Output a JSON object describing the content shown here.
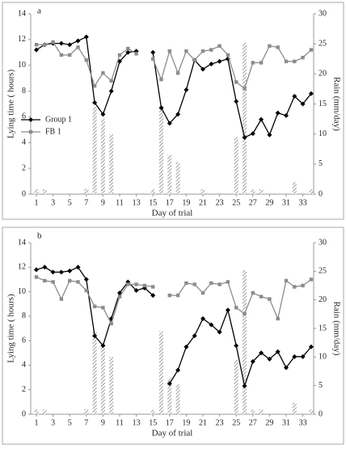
{
  "chart_data": [
    {
      "type": "line",
      "title": "a",
      "x_label": "Day of trial",
      "y_label": "Lying time ( hours)",
      "y2_label": "Rain (mm/day)",
      "x": [
        1,
        2,
        3,
        4,
        5,
        6,
        7,
        8,
        9,
        10,
        11,
        12,
        13,
        14,
        15,
        16,
        17,
        18,
        19,
        20,
        21,
        22,
        23,
        24,
        25,
        26,
        27,
        28,
        29,
        30,
        31,
        32,
        33,
        34
      ],
      "xticks": [
        1,
        3,
        5,
        7,
        9,
        11,
        13,
        15,
        17,
        19,
        21,
        23,
        25,
        27,
        29,
        31,
        33
      ],
      "ylim": [
        0,
        14
      ],
      "yticks": [
        0,
        2,
        4,
        6,
        8,
        10,
        12,
        14
      ],
      "y2lim": [
        0,
        30
      ],
      "y2ticks": [
        0,
        5,
        10,
        15,
        20,
        25,
        30
      ],
      "legend": "left",
      "series": [
        {
          "name": "Group 1",
          "color": "#000000",
          "values": [
            11.2,
            11.6,
            11.7,
            11.7,
            11.6,
            11.9,
            12.2,
            7.1,
            6.2,
            8.0,
            10.3,
            11.0,
            11.1,
            null,
            11.0,
            6.7,
            5.5,
            6.2,
            8.1,
            10.4,
            9.7,
            10.1,
            10.3,
            10.5,
            7.2,
            4.4,
            4.7,
            5.8,
            4.6,
            6.3,
            6.1,
            7.6,
            7.0,
            7.8
          ]
        },
        {
          "name": "FB 1",
          "color": "#8c8c8c",
          "values": [
            11.6,
            11.6,
            11.8,
            10.8,
            10.8,
            11.4,
            10.4,
            8.4,
            9.4,
            8.8,
            10.8,
            11.3,
            10.9,
            null,
            10.5,
            8.9,
            11.1,
            9.4,
            11.1,
            10.4,
            11.1,
            11.2,
            11.5,
            10.8,
            8.7,
            8.2,
            10.2,
            10.2,
            11.5,
            11.4,
            10.3,
            10.3,
            10.6,
            11.2
          ]
        }
      ],
      "bars": {
        "axis": "y2",
        "color": "#777777",
        "values": [
          0.8,
          0.8,
          0,
          0,
          0,
          0,
          0.9,
          14.5,
          12.5,
          10,
          0,
          0,
          0,
          0,
          0.8,
          14.5,
          6.5,
          5.3,
          0,
          0,
          0.8,
          0,
          0,
          0,
          9.5,
          25.2,
          0.8,
          0.8,
          0,
          0,
          0,
          2,
          0,
          0.8
        ]
      }
    },
    {
      "type": "line",
      "title": "b",
      "x_label": "Day of trial",
      "y_label": "Lying time ( hours)",
      "y2_label": "Rain (mm/day)",
      "x": [
        1,
        2,
        3,
        4,
        5,
        6,
        7,
        8,
        9,
        10,
        11,
        12,
        13,
        14,
        15,
        16,
        17,
        18,
        19,
        20,
        21,
        22,
        23,
        24,
        25,
        26,
        27,
        28,
        29,
        30,
        31,
        32,
        33,
        34
      ],
      "xticks": [
        1,
        3,
        5,
        7,
        9,
        11,
        13,
        15,
        17,
        19,
        21,
        23,
        25,
        27,
        29,
        31,
        33
      ],
      "ylim": [
        0,
        14
      ],
      "yticks": [
        0,
        2,
        4,
        6,
        8,
        10,
        12,
        14
      ],
      "y2lim": [
        0,
        30
      ],
      "y2ticks": [
        0,
        5,
        10,
        15,
        20,
        25,
        30
      ],
      "series": [
        {
          "color": "#000000",
          "values": [
            11.8,
            12.0,
            11.6,
            11.6,
            11.7,
            12.0,
            11.0,
            6.4,
            5.6,
            7.8,
            9.9,
            10.8,
            10.1,
            10.3,
            9.7,
            null,
            2.5,
            3.6,
            5.5,
            6.4,
            7.8,
            7.3,
            6.7,
            8.5,
            5.6,
            2.3,
            4.3,
            5.0,
            4.5,
            5.1,
            3.8,
            4.7,
            4.7,
            5.5
          ]
        },
        {
          "color": "#8c8c8c",
          "values": [
            11.2,
            10.9,
            10.8,
            9.4,
            10.9,
            10.8,
            10.1,
            8.8,
            8.7,
            7.4,
            9.6,
            10.6,
            10.6,
            10.5,
            10.4,
            null,
            9.7,
            9.7,
            10.7,
            10.6,
            9.9,
            10.7,
            10.6,
            10.8,
            8.7,
            8.2,
            9.9,
            9.6,
            9.4,
            7.8,
            10.9,
            10.4,
            10.5,
            11.0
          ]
        }
      ],
      "bars": {
        "axis": "y2",
        "color": "#777777",
        "values": [
          0.8,
          0.8,
          0,
          0,
          0,
          0,
          0.9,
          14.5,
          12.5,
          10,
          0,
          0,
          0,
          0,
          0.8,
          14.5,
          6.3,
          5.2,
          0,
          0,
          0,
          0,
          0,
          0,
          9.5,
          25.2,
          0.8,
          0.8,
          0,
          0,
          0,
          2,
          0,
          0.8
        ]
      }
    }
  ]
}
